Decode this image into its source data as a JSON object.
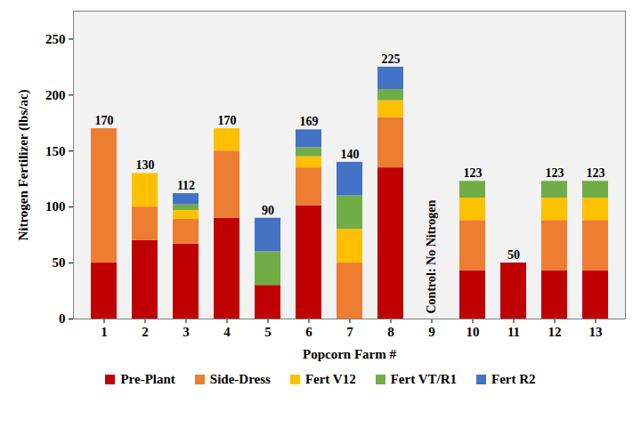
{
  "chart_data": {
    "type": "bar",
    "stacked": true,
    "y_label": "Nitrogen Fertilizer (lbs/ac)",
    "x_label": "Popcorn Farm #",
    "categories": [
      "1",
      "2",
      "3",
      "4",
      "5",
      "6",
      "7",
      "8",
      "9",
      "10",
      "11",
      "12",
      "13"
    ],
    "series": [
      {
        "name": "Pre-Plant",
        "color": "#c00000",
        "values": [
          50,
          70,
          67,
          90,
          30,
          101,
          0,
          135,
          0,
          43,
          50,
          43,
          43
        ]
      },
      {
        "name": "Side-Dress",
        "color": "#ed7d31",
        "values": [
          120,
          30,
          22,
          60,
          0,
          34,
          50,
          45,
          0,
          45,
          0,
          45,
          45
        ]
      },
      {
        "name": "Fert V12",
        "color": "#ffc000",
        "values": [
          0,
          30,
          8,
          20,
          0,
          10,
          30,
          15,
          0,
          20,
          0,
          20,
          20
        ]
      },
      {
        "name": "Fert VT/R1",
        "color": "#70ad47",
        "values": [
          0,
          0,
          5,
          0,
          30,
          8,
          30,
          10,
          0,
          15,
          0,
          15,
          15
        ]
      },
      {
        "name": "Fert R2",
        "color": "#4472c4",
        "values": [
          0,
          0,
          10,
          0,
          30,
          16,
          30,
          20,
          0,
          0,
          0,
          0,
          0
        ]
      }
    ],
    "totals": [
      170,
      130,
      112,
      170,
      90,
      169,
      140,
      225,
      null,
      123,
      50,
      123,
      123
    ],
    "annotations": [
      {
        "text": "Control: No Nitrogen",
        "category": "9"
      }
    ],
    "ylim": [
      0,
      275
    ],
    "yticks": [
      0,
      50,
      100,
      150,
      200,
      250
    ],
    "grid": false,
    "legend": "bottom"
  }
}
